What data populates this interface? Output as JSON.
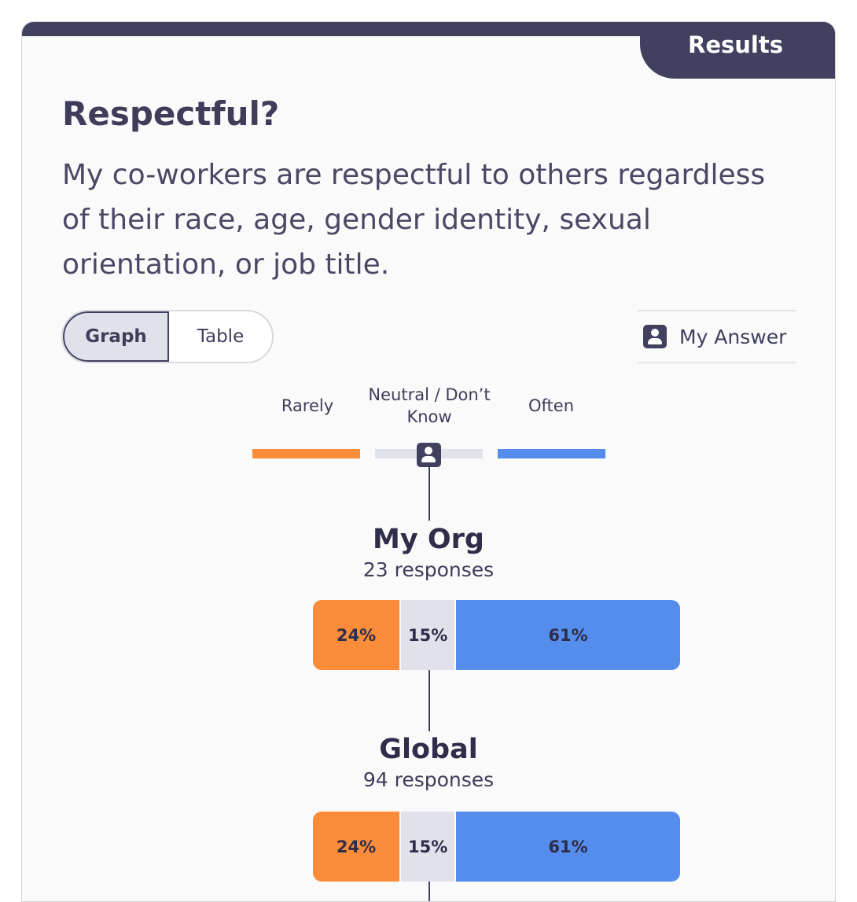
{
  "tab_label": "Results",
  "title": "Respectful?",
  "question": "My co-workers are respectful to others regardless of their race, age, gender identity, sexual orientation, or job title.",
  "view_toggle": {
    "graph": "Graph",
    "table": "Table",
    "selected": "Graph"
  },
  "my_answer_label": "My Answer",
  "legend": [
    {
      "label": "Rarely",
      "color": "#fb8c39"
    },
    {
      "label": "Neutral / Don’t Know",
      "color": "#e1e1ec"
    },
    {
      "label": "Often",
      "color": "#548deb"
    }
  ],
  "my_answer_value": "Neutral / Don’t Know",
  "groups": [
    {
      "name": "My Org",
      "responses": "23 responses",
      "segments": [
        {
          "label": "24%",
          "value": 24
        },
        {
          "label": "15%",
          "value": 15
        },
        {
          "label": "61%",
          "value": 61
        }
      ]
    },
    {
      "name": "Global",
      "responses": "94 responses",
      "segments": [
        {
          "label": "24%",
          "value": 24
        },
        {
          "label": "15%",
          "value": 15
        },
        {
          "label": "61%",
          "value": 61
        }
      ]
    }
  ],
  "colors": {
    "dark": "#42405f",
    "rarely": "#fb8c39",
    "neutral": "#e1e1ec",
    "often": "#548deb"
  }
}
